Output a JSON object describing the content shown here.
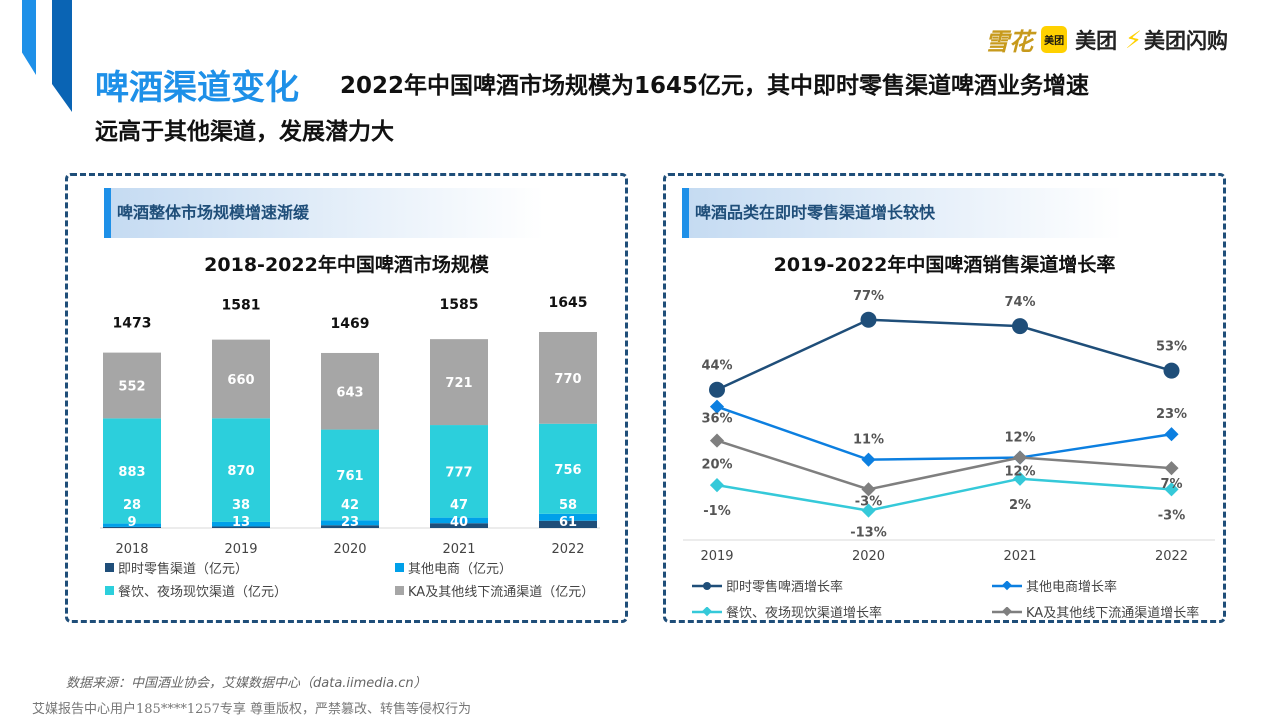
{
  "header": {
    "title": "啤酒渠道变化",
    "subtitle_line1": "2022年中国啤酒市场规模为1645亿元，其中即时零售渠道啤酒业务增速",
    "subtitle_line2": "远高于其他渠道，发展潜力大",
    "logos": [
      "雪花",
      "美团",
      "美团",
      "美团闪购"
    ]
  },
  "left_panel": {
    "heading": "啤酒整体市场规模增速渐缓"
  },
  "right_panel": {
    "heading": "啤酒品类在即时零售渠道增长较快"
  },
  "colors": {
    "dark_blue": "#1f4e79",
    "blue": "#00a0e9",
    "cyan": "#2ccfdc",
    "gray": "#a6a6a6",
    "line_blue": "#0c7fe0",
    "line_cyan": "#35c9d9",
    "line_gray": "#7f7f7f"
  },
  "chart_data": [
    {
      "type": "bar",
      "stacked": true,
      "title": "2018-2022年中国啤酒市场规模",
      "categories": [
        "2018",
        "2019",
        "2020",
        "2021",
        "2022"
      ],
      "totals": [
        1473,
        1581,
        1469,
        1585,
        1645
      ],
      "series": [
        {
          "name": "即时零售渠道（亿元）",
          "values": [
            9,
            13,
            23,
            40,
            61
          ]
        },
        {
          "name": "其他电商（亿元）",
          "values": [
            28,
            38,
            42,
            47,
            58
          ]
        },
        {
          "name": "餐饮、夜场现饮渠道（亿元）",
          "values": [
            883,
            870,
            761,
            777,
            756
          ]
        },
        {
          "name": "KA及其他线下流通渠道（亿元）",
          "values": [
            552,
            660,
            643,
            721,
            770
          ]
        }
      ],
      "legend": "bottom"
    },
    {
      "type": "line",
      "title": "2019-2022年中国啤酒销售渠道增长率",
      "categories": [
        "2019",
        "2020",
        "2021",
        "2022"
      ],
      "unit": "%",
      "series": [
        {
          "name": "即时零售啤酒增长率",
          "values": [
            44,
            77,
            74,
            53
          ],
          "marker": "circle"
        },
        {
          "name": "其他电商增长率",
          "values": [
            36,
            11,
            12,
            23
          ],
          "marker": "diamond"
        },
        {
          "name": "餐饮、夜场现饮渠道增长率",
          "values": [
            -1,
            -13,
            2,
            -3
          ],
          "marker": "diamond"
        },
        {
          "name": "KA及其他线下流通渠道增长率",
          "values": [
            20,
            -3,
            12,
            7
          ],
          "marker": "diamond"
        }
      ],
      "legend": "bottom"
    }
  ],
  "footer": {
    "source": "数据来源：中国酒业协会，艾媒数据中心（data.iimedia.cn）",
    "watermark": "艾媒报告中心用户185****1257专享 尊重版权，严禁篡改、转售等侵权行为"
  }
}
